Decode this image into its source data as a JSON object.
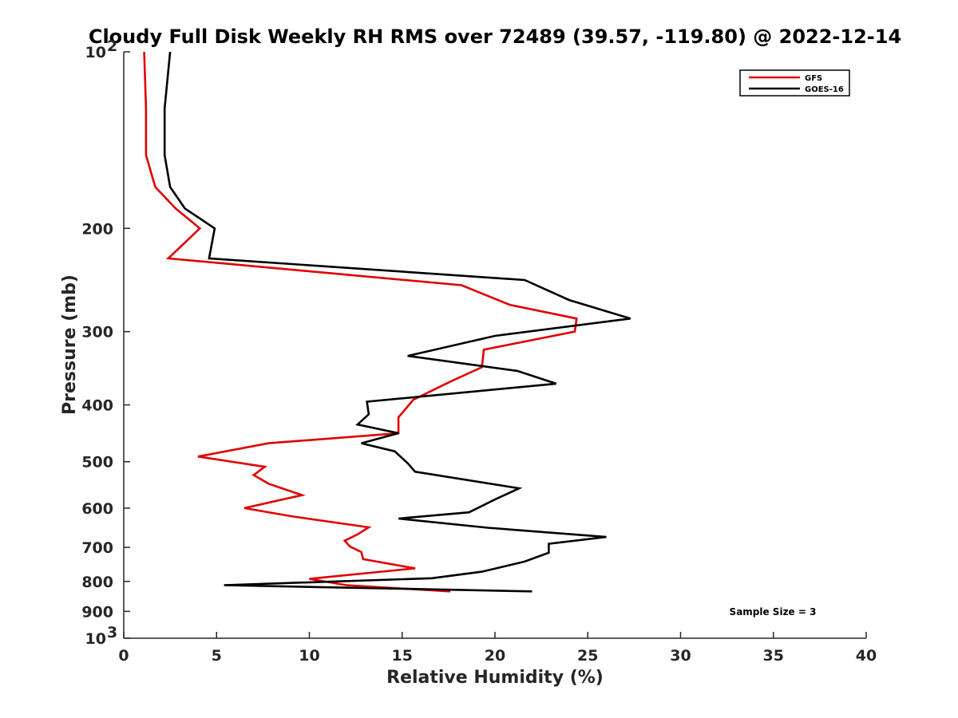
{
  "chart_data": {
    "type": "line",
    "title": "Cloudy Full Disk Weekly RH RMS over 72489 (39.57, -119.80) @ 2022-12-14",
    "xlabel": "Relative Humidity (%)",
    "ylabel": "Pressure (mb)",
    "xlim": [
      0,
      40
    ],
    "ylim": [
      100,
      1000
    ],
    "yscale": "log",
    "y_reversed": true,
    "xticks": [
      0,
      5,
      10,
      15,
      20,
      25,
      30,
      35,
      40
    ],
    "xtick_labels": [
      "0",
      "5",
      "10",
      "15",
      "20",
      "25",
      "30",
      "35",
      "40"
    ],
    "yticks": [
      {
        "value": 100,
        "label": "10",
        "sup": "2"
      },
      {
        "value": 200,
        "label": "200",
        "sup": ""
      },
      {
        "value": 300,
        "label": "300",
        "sup": ""
      },
      {
        "value": 400,
        "label": "400",
        "sup": ""
      },
      {
        "value": 500,
        "label": "500",
        "sup": ""
      },
      {
        "value": 600,
        "label": "600",
        "sup": ""
      },
      {
        "value": 700,
        "label": "700",
        "sup": ""
      },
      {
        "value": 800,
        "label": "800",
        "sup": ""
      },
      {
        "value": 900,
        "label": "900",
        "sup": ""
      },
      {
        "value": 1000,
        "label": "10",
        "sup": "3"
      }
    ],
    "legend_position": "top-right",
    "annotation": "Sample Size = 3",
    "grid": false,
    "series": [
      {
        "name": "GFS",
        "color": "#e00000",
        "points": [
          [
            1.1,
            100
          ],
          [
            1.2,
            125
          ],
          [
            1.2,
            150
          ],
          [
            1.7,
            170
          ],
          [
            2.8,
            185
          ],
          [
            4.1,
            200
          ],
          [
            2.4,
            225
          ],
          [
            18.2,
            250
          ],
          [
            20.8,
            270
          ],
          [
            24.4,
            285
          ],
          [
            24.3,
            300
          ],
          [
            19.4,
            322
          ],
          [
            19.3,
            345
          ],
          [
            17.6,
            365
          ],
          [
            15.6,
            392
          ],
          [
            14.8,
            420
          ],
          [
            14.8,
            447
          ],
          [
            7.8,
            465
          ],
          [
            4.0,
            490
          ],
          [
            7.6,
            510
          ],
          [
            7.0,
            527
          ],
          [
            7.8,
            545
          ],
          [
            9.6,
            570
          ],
          [
            6.5,
            600
          ],
          [
            9.1,
            620
          ],
          [
            13.2,
            647
          ],
          [
            12.6,
            665
          ],
          [
            11.9,
            682
          ],
          [
            12.2,
            698
          ],
          [
            12.8,
            713
          ],
          [
            12.9,
            733
          ],
          [
            15.7,
            760
          ],
          [
            10.0,
            792
          ],
          [
            12.0,
            812
          ],
          [
            17.6,
            832
          ]
        ]
      },
      {
        "name": "GOES-16",
        "color": "#000000",
        "points": [
          [
            2.5,
            100
          ],
          [
            2.2,
            125
          ],
          [
            2.2,
            150
          ],
          [
            2.5,
            170
          ],
          [
            3.3,
            185
          ],
          [
            4.9,
            200
          ],
          [
            4.6,
            225
          ],
          [
            21.6,
            245
          ],
          [
            24.0,
            265
          ],
          [
            27.3,
            285
          ],
          [
            20.0,
            305
          ],
          [
            15.3,
            330
          ],
          [
            21.2,
            350
          ],
          [
            23.3,
            368
          ],
          [
            13.1,
            395
          ],
          [
            13.2,
            415
          ],
          [
            12.6,
            432
          ],
          [
            14.8,
            447
          ],
          [
            12.8,
            465
          ],
          [
            14.6,
            480
          ],
          [
            15.3,
            503
          ],
          [
            15.7,
            520
          ],
          [
            21.3,
            555
          ],
          [
            20.0,
            580
          ],
          [
            18.6,
            610
          ],
          [
            14.8,
            625
          ],
          [
            19.6,
            648
          ],
          [
            26.0,
            672
          ],
          [
            22.9,
            690
          ],
          [
            22.9,
            715
          ],
          [
            21.6,
            740
          ],
          [
            19.3,
            770
          ],
          [
            16.6,
            790
          ],
          [
            5.4,
            812
          ],
          [
            22.0,
            832
          ]
        ]
      }
    ]
  }
}
